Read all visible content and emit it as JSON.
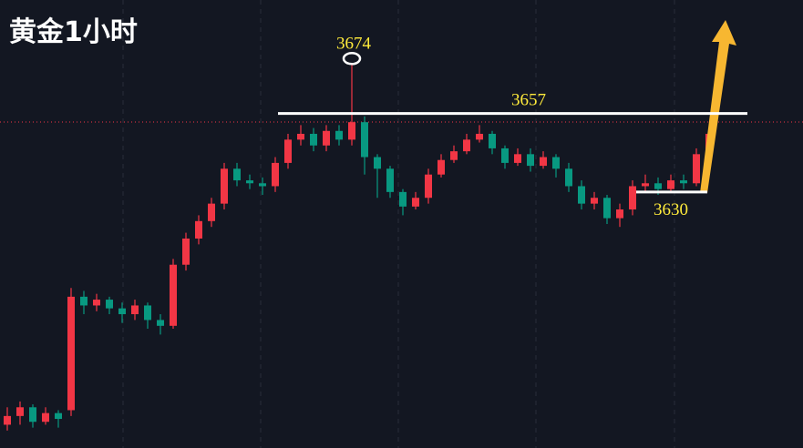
{
  "chart_data": {
    "type": "candlestick",
    "title": "黄金1小时",
    "up_color": "#f23645",
    "down_color": "#089981",
    "ylim": [
      3542,
      3696
    ],
    "open": [
      3550,
      3553,
      3556,
      3551,
      3554,
      3555,
      3594,
      3591,
      3593,
      3590,
      3588,
      3591,
      3586,
      3584,
      3605,
      3614,
      3620,
      3626,
      3638,
      3634,
      3633,
      3632,
      3640,
      3648,
      3650,
      3646,
      3651,
      3648,
      3654,
      3642,
      3638,
      3630,
      3625,
      3628,
      3636,
      3641,
      3644,
      3648,
      3650,
      3645,
      3640,
      3643,
      3639,
      3642,
      3638,
      3632,
      3626,
      3628,
      3621,
      3624,
      3632,
      3633,
      3631,
      3634,
      3633,
      3643
    ],
    "high": [
      3556,
      3558,
      3557,
      3556,
      3555,
      3597,
      3596,
      3595,
      3594,
      3592,
      3593,
      3592,
      3588,
      3607,
      3616,
      3622,
      3628,
      3640,
      3640,
      3636,
      3635,
      3642,
      3650,
      3653,
      3652,
      3653,
      3653,
      3674,
      3656,
      3643,
      3639,
      3631,
      3630,
      3638,
      3643,
      3646,
      3650,
      3653,
      3651,
      3646,
      3645,
      3645,
      3644,
      3643,
      3640,
      3634,
      3630,
      3629,
      3626,
      3634,
      3636,
      3635,
      3636,
      3636,
      3645,
      3652
    ],
    "low": [
      3548,
      3550,
      3549,
      3550,
      3549,
      3553,
      3588,
      3589,
      3588,
      3585,
      3586,
      3583,
      3581,
      3583,
      3603,
      3612,
      3618,
      3624,
      3632,
      3631,
      3629,
      3630,
      3638,
      3646,
      3644,
      3644,
      3646,
      3646,
      3636,
      3628,
      3628,
      3622,
      3624,
      3626,
      3635,
      3640,
      3643,
      3647,
      3643,
      3638,
      3639,
      3637,
      3638,
      3635,
      3630,
      3624,
      3624,
      3619,
      3618,
      3622,
      3630,
      3629,
      3630,
      3631,
      3632,
      3641
    ],
    "close": [
      3553,
      3556,
      3551,
      3554,
      3552,
      3594,
      3591,
      3593,
      3590,
      3588,
      3591,
      3586,
      3584,
      3605,
      3614,
      3620,
      3626,
      3638,
      3634,
      3633,
      3632,
      3640,
      3648,
      3650,
      3646,
      3651,
      3648,
      3654,
      3642,
      3638,
      3630,
      3625,
      3628,
      3636,
      3641,
      3644,
      3648,
      3650,
      3645,
      3640,
      3643,
      3639,
      3642,
      3638,
      3632,
      3626,
      3628,
      3621,
      3624,
      3632,
      3633,
      3631,
      3634,
      3633,
      3643,
      3650
    ],
    "high_marker": 3674,
    "resistance": 3657,
    "support": 3630
  }
}
